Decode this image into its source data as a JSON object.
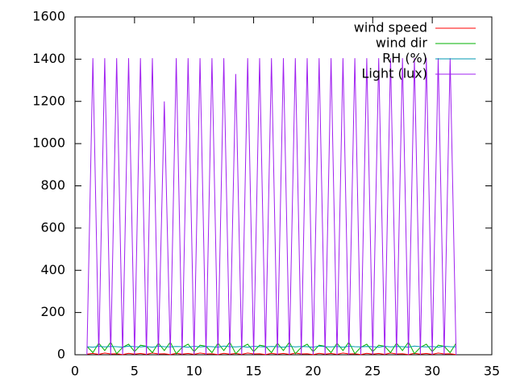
{
  "chart_data": {
    "type": "line",
    "x": [
      1,
      1.5,
      2,
      2.5,
      3,
      3.5,
      4,
      4.5,
      5,
      5.5,
      6,
      6.5,
      7,
      7.5,
      8,
      8.5,
      9,
      9.5,
      10,
      10.5,
      11,
      11.5,
      12,
      12.5,
      13,
      13.5,
      14,
      14.5,
      15,
      15.5,
      16,
      16.5,
      17,
      17.5,
      18,
      18.5,
      19,
      19.5,
      20,
      20.5,
      21,
      21.5,
      22,
      22.5,
      23,
      23.5,
      24,
      24.5,
      25,
      25.5,
      26,
      26.5,
      27,
      27.5,
      28,
      28.5,
      29,
      29.5,
      30,
      30.5,
      31,
      31.5,
      32
    ],
    "series": [
      {
        "name": "wind speed",
        "color": "#ff0000",
        "values": [
          3,
          6,
          2,
          8,
          4,
          5,
          1,
          7,
          3,
          6,
          2,
          8,
          4,
          5,
          1,
          7,
          3,
          6,
          2,
          8,
          4,
          5,
          1,
          7,
          3,
          6,
          2,
          8,
          4,
          5,
          1,
          7,
          3,
          6,
          2,
          8,
          4,
          5,
          1,
          7,
          3,
          6,
          2,
          8,
          4,
          5,
          1,
          7,
          3,
          6,
          2,
          8,
          4,
          5,
          1,
          7,
          3,
          6,
          2,
          8,
          4,
          5,
          1
        ]
      },
      {
        "name": "wind dir",
        "color": "#00b000",
        "values": [
          40,
          10,
          55,
          20,
          60,
          5,
          35,
          50,
          15,
          45,
          40,
          10,
          55,
          20,
          60,
          5,
          35,
          50,
          15,
          45,
          40,
          10,
          55,
          20,
          60,
          5,
          35,
          50,
          15,
          45,
          40,
          10,
          55,
          20,
          60,
          5,
          35,
          50,
          15,
          45,
          40,
          10,
          55,
          20,
          60,
          5,
          35,
          50,
          15,
          45,
          40,
          10,
          55,
          20,
          60,
          5,
          35,
          50,
          15,
          45,
          40,
          10,
          55
        ]
      },
      {
        "name": "RH (%)",
        "color": "#0099b0",
        "values": [
          38,
          36,
          40,
          37,
          39,
          38,
          36,
          41,
          38,
          37,
          39,
          36,
          40,
          38,
          37,
          39,
          38,
          36,
          40,
          37,
          39,
          38,
          36,
          41,
          38,
          37,
          39,
          36,
          40,
          38,
          37,
          39,
          38,
          36,
          40,
          37,
          39,
          38,
          36,
          41,
          38,
          37,
          39,
          36,
          40,
          38,
          37,
          39,
          38,
          36,
          40,
          37,
          39,
          38,
          36,
          41,
          38,
          37,
          39,
          36,
          40,
          38,
          37
        ]
      },
      {
        "name": "Light (lux)",
        "color": "#a020f0",
        "values": [
          0,
          1405,
          0,
          1405,
          0,
          1405,
          0,
          1405,
          0,
          1405,
          0,
          1405,
          0,
          1200,
          0,
          1405,
          0,
          1405,
          0,
          1405,
          0,
          1405,
          0,
          1405,
          0,
          1330,
          0,
          1405,
          0,
          1405,
          0,
          1405,
          0,
          1405,
          0,
          1405,
          0,
          1405,
          0,
          1405,
          0,
          1405,
          0,
          1405,
          0,
          1405,
          0,
          1405,
          0,
          1405,
          0,
          1405,
          0,
          1405,
          0,
          1405,
          0,
          1405,
          0,
          1405,
          0,
          1405,
          0
        ]
      }
    ],
    "xlim": [
      0,
      35
    ],
    "xticks": [
      0,
      5,
      10,
      15,
      20,
      25,
      30,
      35
    ],
    "ylim": [
      0,
      1600
    ],
    "yticks": [
      0,
      200,
      400,
      600,
      800,
      1000,
      1200,
      1400,
      1600
    ],
    "legend": "top-right"
  }
}
